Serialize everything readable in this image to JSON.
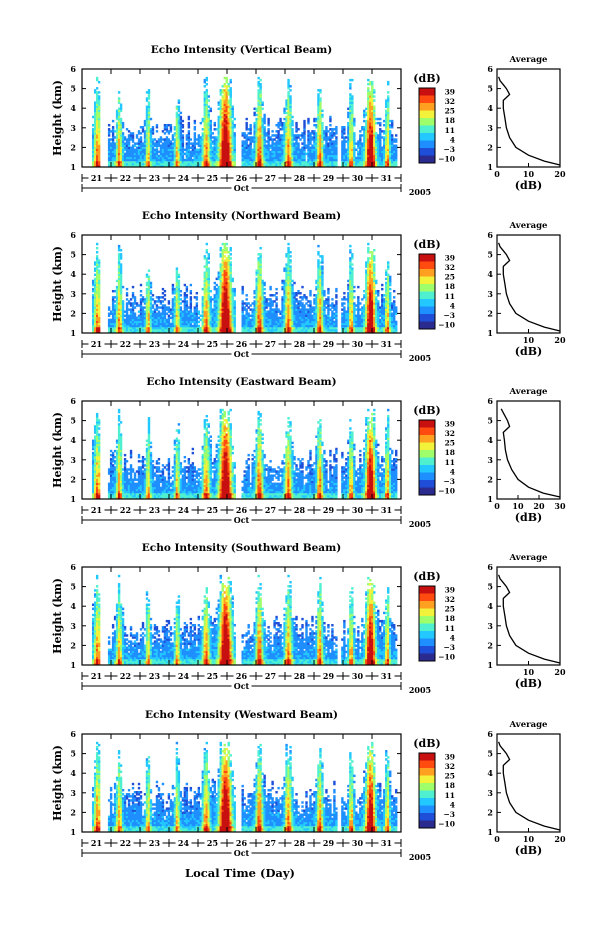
{
  "figure": {
    "xlabel": "Local Time (Day)",
    "month": "Oct",
    "year": "2005",
    "day_ticks": [
      "21",
      "22",
      "23",
      "24",
      "25",
      "26",
      "27",
      "28",
      "29",
      "30",
      "31"
    ],
    "colorbar_unit": "(dB)",
    "colorbar_ticks": [
      "39",
      "32",
      "25",
      "18",
      "11",
      "4",
      "−3",
      "−10"
    ],
    "colormap_colors": [
      "#2b2b8f",
      "#1f4fd8",
      "#1f8fff",
      "#22c8ff",
      "#4ff0d0",
      "#9fff6a",
      "#f2f23a",
      "#ffa020",
      "#ff4a10",
      "#c81010"
    ]
  },
  "chart_data": [
    {
      "type": "heatmap",
      "title": "Echo Intensity (Vertical Beam)",
      "ylabel": "Height (km)",
      "x_range": [
        "2005-10-21 00:00",
        "2005-10-31 24:00"
      ],
      "y_range_km": [
        1,
        6
      ],
      "y_ticks": [
        1,
        2,
        3,
        4,
        5,
        6
      ],
      "color_range_db": [
        -10,
        39
      ],
      "average_profile": {
        "title": "Average",
        "xlabel": "(dB)",
        "x_range": [
          0,
          20
        ],
        "x_ticks": [
          0,
          10,
          20
        ],
        "height_km": [
          1.1,
          1.3,
          1.6,
          2.0,
          2.5,
          3.0,
          3.5,
          4.0,
          4.4,
          4.7,
          5.0,
          5.2,
          5.4,
          5.6
        ],
        "db": [
          20,
          15,
          10,
          6,
          4,
          3,
          2.5,
          2,
          2,
          4,
          3,
          2,
          1,
          0.5
        ]
      }
    },
    {
      "type": "heatmap",
      "title": "Echo Intensity (Northward Beam)",
      "ylabel": "Height (km)",
      "x_range": [
        "2005-10-21 00:00",
        "2005-10-31 24:00"
      ],
      "y_range_km": [
        1,
        6
      ],
      "y_ticks": [
        1,
        2,
        3,
        4,
        5,
        6
      ],
      "color_range_db": [
        -10,
        39
      ],
      "average_profile": {
        "title": "Average",
        "xlabel": "(dB)",
        "x_range": [
          0,
          20
        ],
        "x_ticks": [
          10,
          20
        ],
        "height_km": [
          1.1,
          1.3,
          1.6,
          2.0,
          2.5,
          3.0,
          3.5,
          4.0,
          4.4,
          4.7,
          5.0,
          5.2,
          5.4,
          5.6
        ],
        "db": [
          20,
          15,
          10,
          6,
          4,
          3,
          2.5,
          2,
          2,
          4,
          3,
          2,
          1,
          0.5
        ]
      }
    },
    {
      "type": "heatmap",
      "title": "Echo Intensity (Eastward Beam)",
      "ylabel": "Height (km)",
      "x_range": [
        "2005-10-21 00:00",
        "2005-10-31 24:00"
      ],
      "y_range_km": [
        1,
        6
      ],
      "y_ticks": [
        1,
        2,
        3,
        4,
        5,
        6
      ],
      "color_range_db": [
        -10,
        39
      ],
      "average_profile": {
        "title": "Average",
        "xlabel": "(dB)",
        "x_range": [
          0,
          30
        ],
        "x_ticks": [
          0,
          10,
          20,
          30
        ],
        "height_km": [
          1.1,
          1.3,
          1.6,
          2.0,
          2.5,
          3.0,
          3.5,
          4.0,
          4.4,
          4.7,
          5.0,
          5.2,
          5.4,
          5.6
        ],
        "db": [
          30,
          22,
          15,
          10,
          7,
          5,
          4,
          3.5,
          3,
          6,
          5,
          4,
          3,
          2
        ]
      }
    },
    {
      "type": "heatmap",
      "title": "Echo Intensity (Southward Beam)",
      "ylabel": "Height (km)",
      "x_range": [
        "2005-10-21 00:00",
        "2005-10-31 24:00"
      ],
      "y_range_km": [
        1,
        6
      ],
      "y_ticks": [
        1,
        2,
        3,
        4,
        5,
        6
      ],
      "color_range_db": [
        -10,
        39
      ],
      "average_profile": {
        "title": "Average",
        "xlabel": "(dB)",
        "x_range": [
          0,
          20
        ],
        "x_ticks": [
          10,
          20
        ],
        "height_km": [
          1.1,
          1.3,
          1.6,
          2.0,
          2.5,
          3.0,
          3.5,
          4.0,
          4.4,
          4.7,
          5.0,
          5.2,
          5.4,
          5.6
        ],
        "db": [
          20,
          15,
          10,
          6,
          4,
          3,
          2.5,
          2,
          2,
          4,
          3,
          2,
          1,
          0.5
        ]
      }
    },
    {
      "type": "heatmap",
      "title": "Echo Intensity (Westward Beam)",
      "ylabel": "Height (km)",
      "x_range": [
        "2005-10-21 00:00",
        "2005-10-31 24:00"
      ],
      "y_range_km": [
        1,
        6
      ],
      "y_ticks": [
        1,
        2,
        3,
        4,
        5,
        6
      ],
      "color_range_db": [
        -10,
        39
      ],
      "average_profile": {
        "title": "Average",
        "xlabel": "(dB)",
        "x_range": [
          0,
          20
        ],
        "x_ticks": [
          0,
          10,
          20
        ],
        "height_km": [
          1.1,
          1.3,
          1.6,
          2.0,
          2.5,
          3.0,
          3.5,
          4.0,
          4.4,
          4.7,
          5.0,
          5.2,
          5.4,
          5.6
        ],
        "db": [
          20,
          15,
          10,
          6,
          4,
          3,
          2.5,
          2,
          2,
          4,
          3,
          2,
          1,
          0.5
        ]
      }
    }
  ]
}
